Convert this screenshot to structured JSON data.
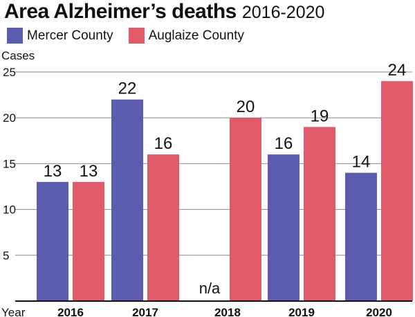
{
  "title": "Area Alzheimer’s deaths",
  "subtitle": "2016-2020",
  "chart_data": {
    "type": "bar",
    "categories": [
      "2016",
      "2017",
      "2018",
      "2019",
      "2020"
    ],
    "series": [
      {
        "name": "Mercer County",
        "color": "#5b5bb0",
        "values": [
          13,
          22,
          null,
          16,
          14
        ]
      },
      {
        "name": "Auglaize County",
        "color": "#e05a68",
        "values": [
          13,
          16,
          20,
          19,
          24
        ]
      }
    ],
    "value_labels": [
      [
        "13",
        "22",
        "n/a",
        "16",
        "14"
      ],
      [
        "13",
        "16",
        "20",
        "19",
        "24"
      ]
    ],
    "ylabel": "Cases",
    "xlabel": "Year",
    "ylim": [
      0,
      25
    ],
    "yticks": [
      5,
      10,
      15,
      20,
      25
    ],
    "grid": true,
    "legend": "top-left"
  }
}
